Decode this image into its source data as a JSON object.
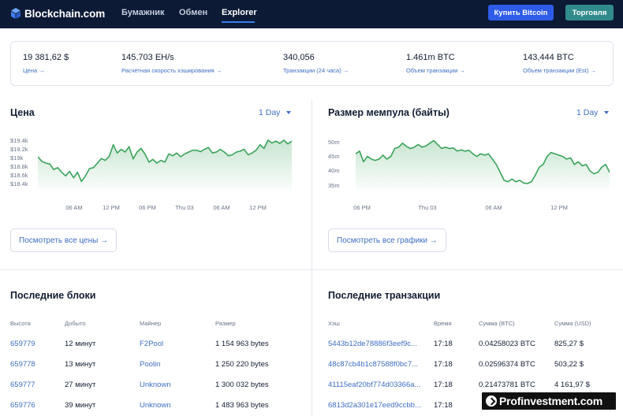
{
  "nav": {
    "brand": "Blockchain.com",
    "links": [
      "Бумажник",
      "Обмен",
      "Explorer"
    ],
    "active": "Explorer",
    "buy_label": "Купить Bitcoin",
    "trade_label": "Торговля"
  },
  "stats": [
    {
      "value": "19 381,62 $",
      "label": "Цена →"
    },
    {
      "value": "145.703 EH/s",
      "label": "Расчетная скорость хэширования →"
    },
    {
      "value": "340,056",
      "label": "Транзакции (24 часа) →"
    },
    {
      "value": "1.461m BTC",
      "label": "Объем транзакции →"
    },
    {
      "value": "143,444 BTC",
      "label": "Объем транзакции (Est) →"
    }
  ],
  "price_panel": {
    "title": "Цена",
    "range": "1 Day",
    "button": "Посмотреть все цены →"
  },
  "mempool_panel": {
    "title": "Размер мемпула (байты)",
    "range": "1 Day",
    "button": "Посмотреть все графики →"
  },
  "chart_data": [
    {
      "type": "area",
      "y_ticks": [
        "$19.4k",
        "$19.2k",
        "$19k",
        "$18.8k",
        "$18.6k",
        "$18.4k"
      ],
      "x_ticks": [
        "06 AM",
        "12 PM",
        "06 PM",
        "Thu 03",
        "06 AM",
        "12 PM"
      ],
      "ylim": [
        18350,
        19450
      ],
      "values": [
        19040,
        18940,
        18900,
        18880,
        18760,
        18800,
        18700,
        18620,
        18720,
        18580,
        18700,
        18500,
        18620,
        18780,
        18800,
        18900,
        19000,
        18960,
        19050,
        19300,
        19120,
        19200,
        19140,
        19260,
        18990,
        19140,
        19220,
        19100,
        18920,
        18980,
        18900,
        18960,
        18920,
        19100,
        19060,
        19120,
        19040,
        19100,
        19140,
        19180,
        19180,
        19150,
        19200,
        19240,
        19120,
        19140,
        19200,
        19140,
        19060,
        19080,
        19140,
        19160,
        19200,
        19080,
        19120,
        19180,
        19300,
        19220,
        19400,
        19340,
        19380,
        19330,
        19400,
        19320,
        19380
      ],
      "line_color": "#3aa35a"
    },
    {
      "type": "area",
      "y_ticks": [
        "50m",
        "45m",
        "40m",
        "35m"
      ],
      "x_ticks": [
        "06 PM",
        "Thu 03",
        "06 AM",
        "12 PM"
      ],
      "ylim": [
        32,
        51
      ],
      "values": [
        45,
        46,
        42,
        44,
        43,
        42.5,
        43,
        44.5,
        43,
        44,
        47,
        47.5,
        49,
        47.8,
        47,
        47.5,
        48.5,
        47.5,
        48,
        49,
        50,
        48.5,
        47,
        47.5,
        47,
        47.2,
        46,
        46.5,
        46,
        46.3,
        45,
        44,
        45,
        44.5,
        45,
        43,
        41,
        38,
        35,
        34.5,
        35.5,
        34.5,
        35,
        34,
        33.8,
        34.5,
        37,
        40,
        41,
        44,
        45.5,
        45,
        44.5,
        44,
        43,
        43.5,
        41,
        42,
        40.5,
        41,
        38.5,
        37.5,
        38,
        40,
        41,
        38
      ],
      "line_color": "#3aa35a"
    }
  ],
  "blocks": {
    "title": "Последние блоки",
    "headers": [
      "Высота",
      "Добыто",
      "Майнер",
      "Размер"
    ],
    "rows": [
      [
        "659779",
        "12 минут",
        "F2Pool",
        "1 154 963 bytes"
      ],
      [
        "659778",
        "13 минут",
        "Poolin",
        "1 250 220 bytes"
      ],
      [
        "659777",
        "27 минут",
        "Unknown",
        "1 300 032 bytes"
      ],
      [
        "659776",
        "39 минут",
        "Unknown",
        "1 483 963 bytes"
      ]
    ]
  },
  "transactions": {
    "title": "Последние транзакции",
    "headers": [
      "Хэш",
      "Время",
      "Сумма (BTC)",
      "Сумма (USD)"
    ],
    "rows": [
      [
        "5443b12de78886f3eef9c...",
        "17:18",
        "0.04258023 BTC",
        "825,27 $"
      ],
      [
        "48c87cb4b1c87588f0bc7...",
        "17:18",
        "0.02596374 BTC",
        "503,22 $"
      ],
      [
        "41115eaf20bf774d03366a...",
        "17:18",
        "0.21473781 BTC",
        "4 161,97 $"
      ],
      [
        "6813d2a301e17eed9ccbb...",
        "17:18",
        "",
        ""
      ]
    ]
  },
  "watermark": "Profinvestment.com"
}
